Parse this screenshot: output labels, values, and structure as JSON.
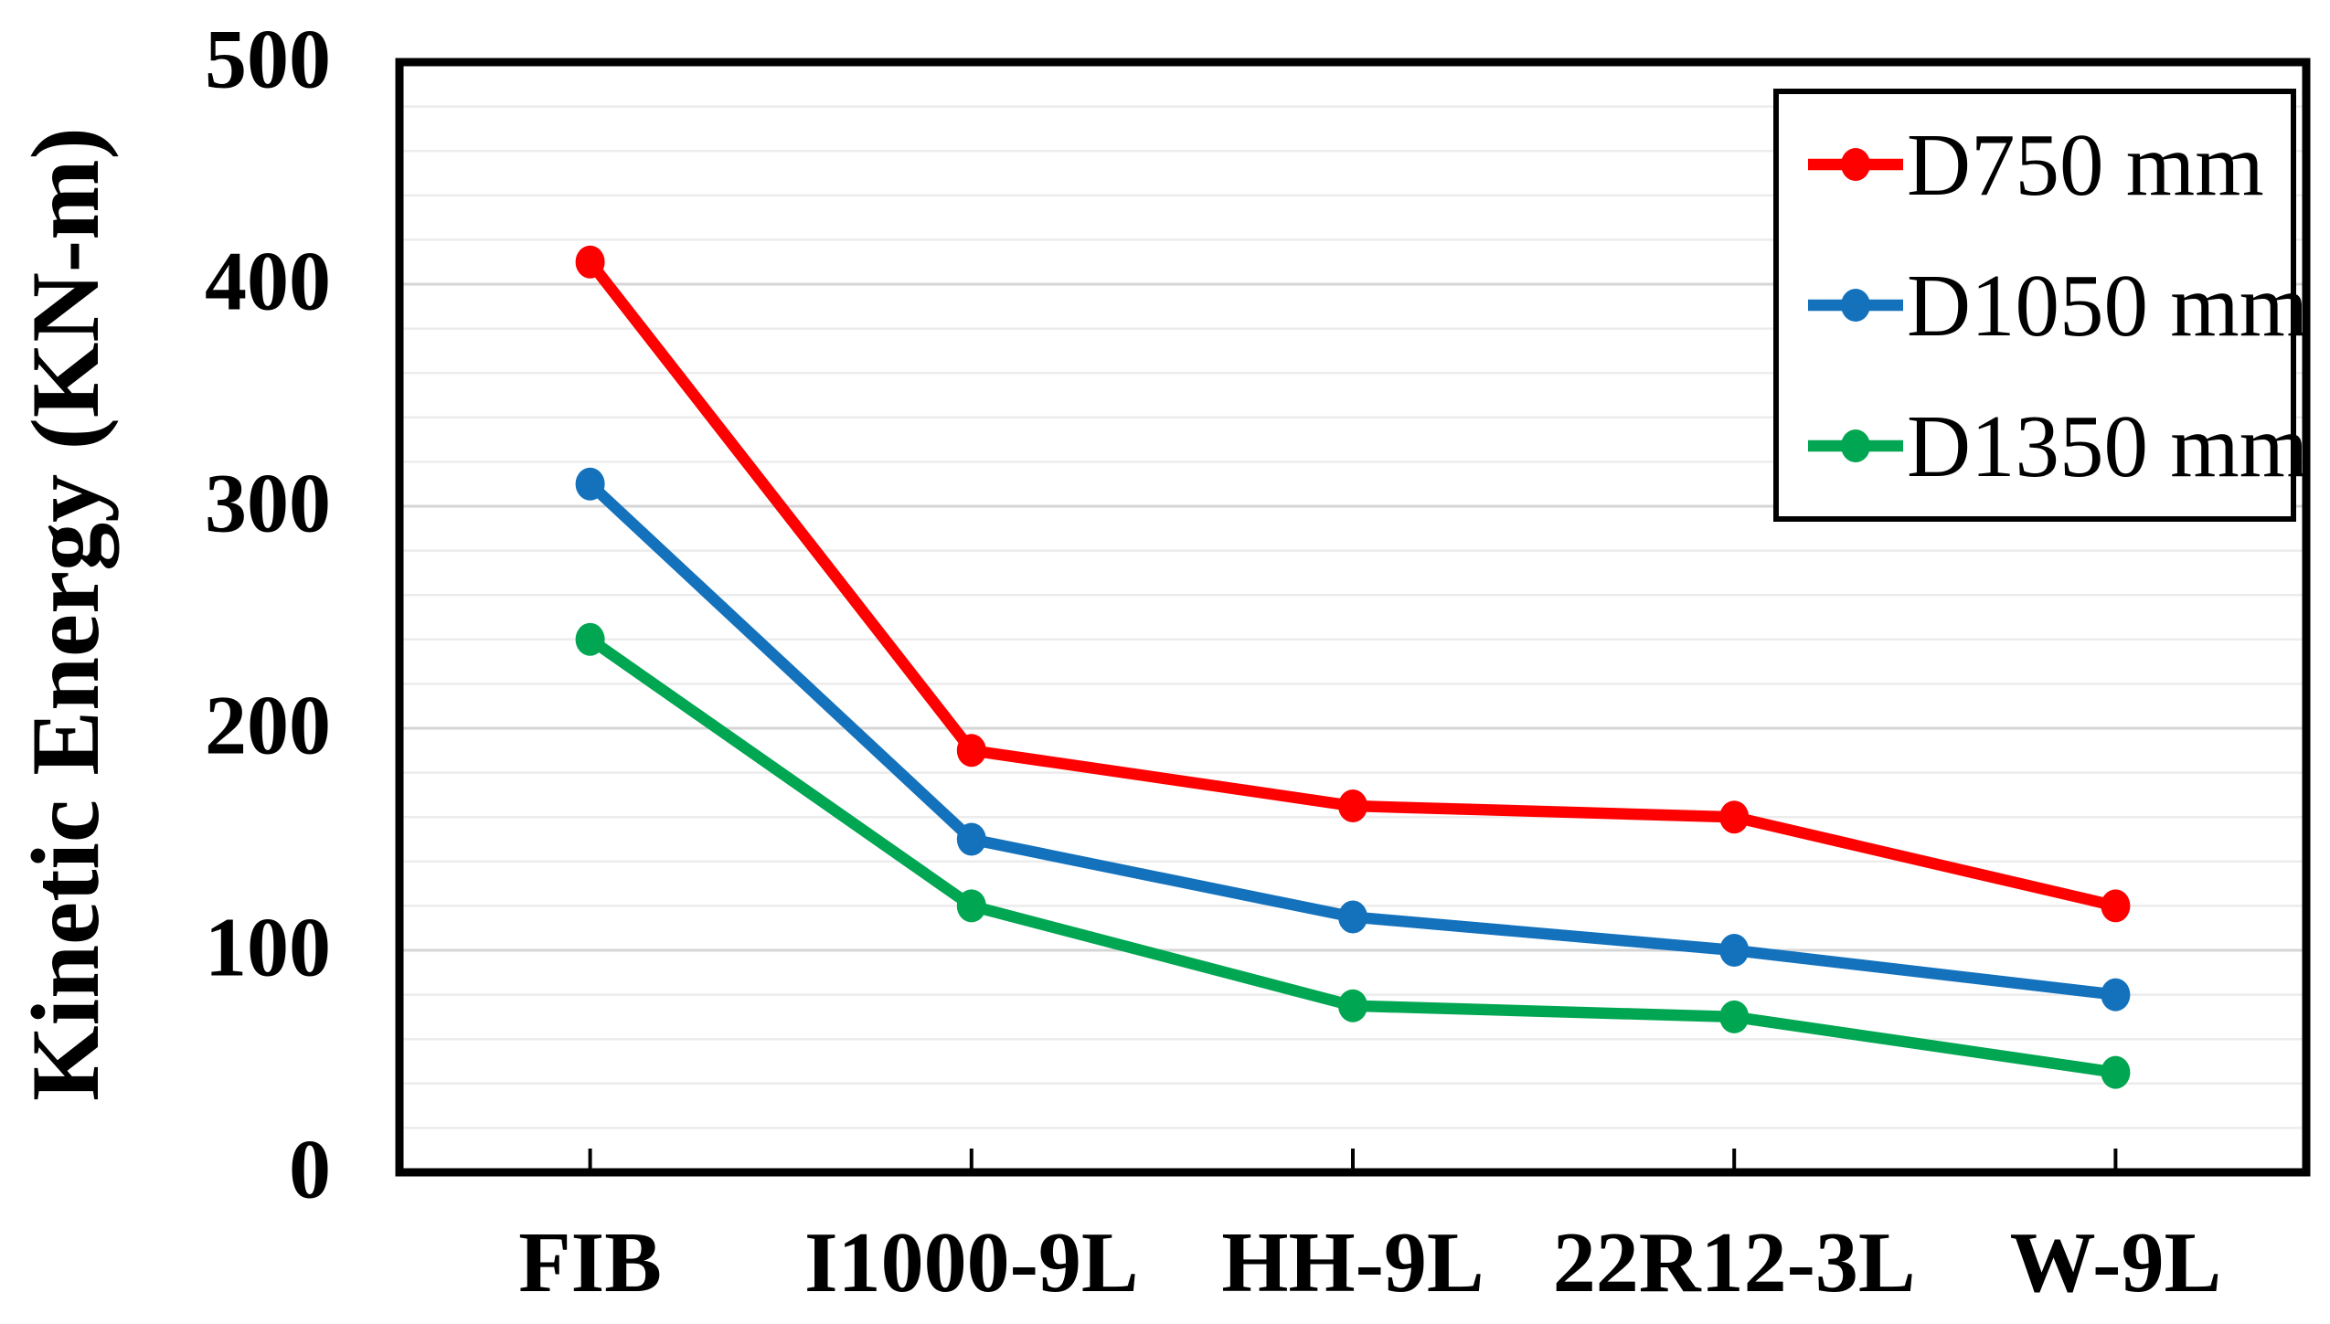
{
  "chart_data": {
    "type": "line",
    "title": "",
    "categories": [
      "FIB",
      "I1000-9L",
      "HH-9L",
      "22R12-3L",
      "W-9L"
    ],
    "series": [
      {
        "name": "D750 mm",
        "color": "#FE0000",
        "values": [
          410,
          190,
          165,
          160,
          120
        ]
      },
      {
        "name": "D1050 mm",
        "color": "#1472BD",
        "values": [
          310,
          150,
          115,
          100,
          80
        ]
      },
      {
        "name": "D1350 mm",
        "color": "#00A651",
        "values": [
          240,
          120,
          75,
          70,
          45
        ]
      }
    ],
    "xlabel": "",
    "ylabel": "Kinetic Energy (KN-m)",
    "ylim": [
      0,
      500
    ],
    "ytick_step": 100,
    "grid_minor_step": 20,
    "grid": true,
    "legend_position": "top-right",
    "marker": "circle",
    "colors": {
      "axis_border": "#000000",
      "grid_minor": "#ECECEC",
      "grid_major": "#D6D6D6",
      "background": "#FFFFFF"
    }
  },
  "axis": {
    "ytick_labels": [
      "0",
      "100",
      "200",
      "300",
      "400",
      "500"
    ]
  }
}
